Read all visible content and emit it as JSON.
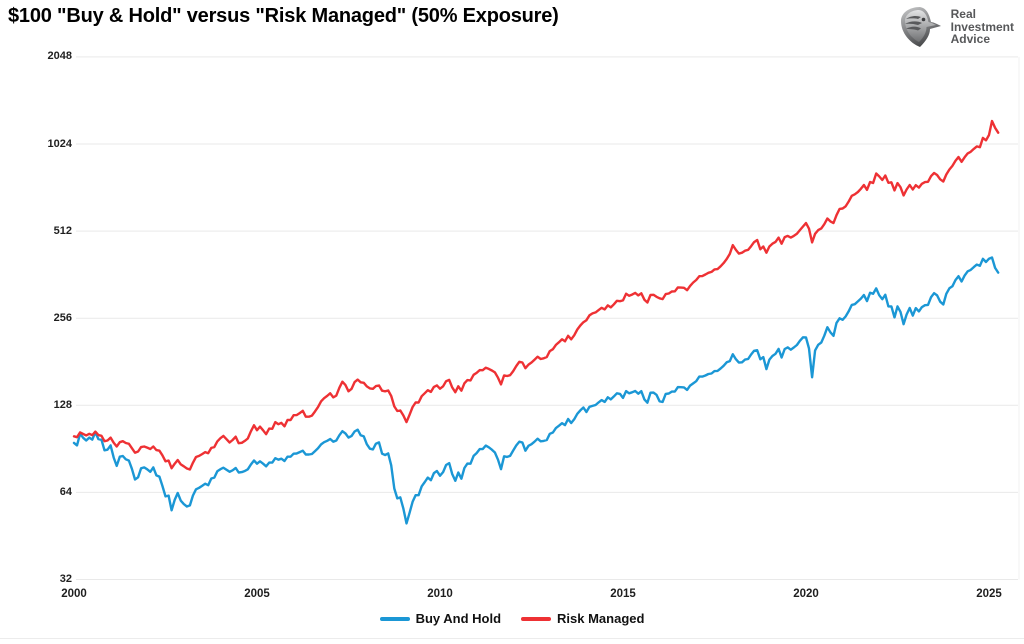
{
  "title": "$100 \"Buy & Hold\" versus \"Risk Managed\" (50% Exposure)",
  "logo": {
    "line1": "Real",
    "line2": "Investment",
    "line3": "Advice"
  },
  "colors": {
    "buy_and_hold": "#1b97d5",
    "risk_managed": "#ee3134",
    "grid": "#e9e9e9",
    "tick_text": "#1f1f1f",
    "title_text": "#000000",
    "logo_text": "#57585a"
  },
  "chart_data": {
    "type": "line",
    "title": "$100 \"Buy & Hold\" versus \"Risk Managed\" (50% Exposure)",
    "xlabel": "",
    "ylabel": "",
    "y_scale": "log2",
    "ylim": [
      32,
      2048
    ],
    "y_ticks": [
      2048,
      1024,
      512,
      256,
      128,
      64,
      32
    ],
    "x_ticks": [
      2000,
      2005,
      2010,
      2015,
      2020,
      2025
    ],
    "x_start_year": 2000,
    "x_step_months": 1,
    "grid": "horizontal-only",
    "legend_position": "bottom-center",
    "series": [
      {
        "name": "Buy And Hold",
        "color": "#1b97d5",
        "values": [
          94.9,
          93.0,
          102.0,
          98.8,
          96.7,
          99.0,
          97.4,
          103.3,
          97.8,
          97.3,
          89.5,
          89.9,
          93.0,
          84.4,
          79.0,
          85.0,
          85.5,
          83.3,
          82.4,
          77.2,
          70.9,
          72.2,
          77.5,
          78.1,
          76.9,
          75.4,
          78.1,
          73.3,
          72.6,
          67.4,
          62.0,
          62.4,
          55.5,
          60.3,
          63.7,
          59.9,
          58.3,
          57.2,
          57.7,
          62.4,
          65.6,
          66.4,
          67.4,
          68.6,
          67.8,
          71.5,
          72.0,
          75.7,
          77.0,
          77.9,
          76.7,
          75.4,
          76.3,
          77.7,
          75.0,
          75.2,
          75.9,
          76.9,
          79.9,
          82.5,
          80.4,
          82.0,
          80.4,
          78.8,
          81.1,
          81.1,
          84.0,
          83.0,
          83.7,
          82.2,
          85.0,
          85.0,
          87.1,
          87.2,
          88.2,
          89.2,
          86.5,
          86.5,
          86.9,
          88.8,
          90.9,
          93.8,
          95.4,
          96.5,
          97.9,
          95.8,
          96.7,
          100.9,
          104.2,
          102.3,
          99.0,
          100.3,
          103.9,
          105.4,
          100.8,
          99.9,
          93.9,
          90.6,
          90.1,
          94.3,
          95.3,
          87.1,
          86.2,
          87.3,
          79.4,
          66.0,
          61.0,
          61.5,
          56.2,
          50.0,
          54.3,
          59.4,
          62.6,
          62.6,
          67.2,
          69.5,
          72.0,
          70.5,
          74.6,
          75.9,
          73.1,
          75.2,
          79.6,
          80.8,
          74.1,
          70.2,
          75.0,
          71.4,
          77.7,
          80.5,
          80.4,
          85.6,
          87.5,
          90.3,
          90.3,
          92.9,
          91.6,
          89.9,
          87.9,
          83.0,
          77.0,
          85.3,
          84.9,
          85.6,
          89.3,
          93.0,
          95.8,
          95.2,
          89.2,
          92.7,
          93.9,
          95.8,
          98.1,
          96.1,
          96.4,
          97.1,
          102.0,
          103.1,
          106.8,
          108.8,
          111.0,
          109.3,
          114.8,
          111.2,
          114.5,
          119.6,
          122.9,
          125.8,
          121.4,
          126.5,
          127.4,
          128.3,
          131.0,
          133.4,
          131.5,
          136.4,
          134.2,
          137.4,
          140.8,
          140.2,
          135.8,
          143.3,
          140.8,
          142.0,
          143.4,
          140.4,
          143.2,
          134.2,
          130.7,
          141.5,
          141.6,
          139.1,
          132.1,
          131.5,
          140.2,
          140.6,
          142.8,
          142.9,
          148.0,
          147.8,
          147.6,
          144.7,
          149.7,
          152.4,
          155.1,
          160.9,
          160.9,
          162.3,
          164.2,
          164.9,
          168.1,
          168.3,
          171.5,
          175.3,
          180.3,
          182.0,
          192.2,
          184.8,
          179.8,
          180.3,
          184.1,
          185.0,
          191.7,
          197.5,
          198.4,
          184.6,
          187.9,
          170.7,
          184.1,
          189.5,
          192.9,
          200.5,
          187.3,
          200.3,
          202.9,
          199.2,
          202.7,
          206.8,
          213.8,
          219.9,
          219.6,
          201.1,
          160.0,
          198.2,
          207.2,
          211.0,
          222.7,
          238.3,
          228.9,
          222.6,
          246.6,
          255.7,
          252.8,
          259.4,
          270.5,
          284.6,
          286.2,
          292.6,
          299.2,
          307.9,
          293.3,
          313.5,
          310.9,
          324.4,
          307.4,
          297.8,
          308.4,
          281.3,
          281.3,
          257.7,
          281.1,
          269.2,
          244.1,
          263.6,
          277.7,
          261.4,
          277.5,
          270.3,
          279.7,
          283.8,
          284.5,
          302.9,
          312.4,
          306.9,
          291.9,
          285.5,
          310.9,
          324.7,
          330.0,
          346.9,
          357.7,
          342.8,
          359.3,
          371.7,
          375.9,
          384.5,
          392.2,
          388.4,
          410.6,
          400.4,
          411.2,
          415.0,
          382.0,
          368.0
        ]
      },
      {
        "name": "Risk Managed",
        "color": "#ee3134",
        "values": [
          100.0,
          99.3,
          103.2,
          101.9,
          100.7,
          102.0,
          101.0,
          103.8,
          101.0,
          100.4,
          96.2,
          96.7,
          99.0,
          95.0,
          92.2,
          95.4,
          96.2,
          94.8,
          94.2,
          91.0,
          87.8,
          88.6,
          91.8,
          92.2,
          91.4,
          90.4,
          92.2,
          89.6,
          89.2,
          86.0,
          82.0,
          82.4,
          77.6,
          80.4,
          82.8,
          80.0,
          78.8,
          77.4,
          76.8,
          81.0,
          84.8,
          85.6,
          86.8,
          88.2,
          87.4,
          91.2,
          91.8,
          96.0,
          98.5,
          100.3,
          97.7,
          95.2,
          97.1,
          99.7,
          94.7,
          95.0,
          96.4,
          98.3,
          104.1,
          109.2,
          105.0,
          108.0,
          104.9,
          101.7,
          106.3,
          106.2,
          112.0,
          110.1,
          111.3,
          108.3,
          113.9,
          113.9,
          118.3,
          118.4,
          120.3,
          122.5,
          116.9,
          116.9,
          117.9,
          121.7,
          126.2,
          132.1,
          135.4,
          137.9,
          140.8,
          136.3,
          138.3,
          147.3,
          154.5,
          150.3,
          143.1,
          146.0,
          153.9,
          157.1,
          153.7,
          153.1,
          148.8,
          146.4,
          146.0,
          149.1,
          149.8,
          143.8,
          143.1,
          144.0,
          137.9,
          126.9,
          122.3,
          122.8,
          118.0,
          112.0,
          118.6,
          126.3,
          130.9,
          130.9,
          137.6,
          140.9,
          144.4,
          142.4,
          148.2,
          150.0,
          146.1,
          148.9,
          155.0,
          156.7,
          147.6,
          142.1,
          148.9,
          143.8,
          152.5,
          156.4,
          156.1,
          163.2,
          165.7,
          169.4,
          169.3,
          172.7,
          171.0,
          168.9,
          166.3,
          159.5,
          151.2,
          162.4,
          161.6,
          162.6,
          168.0,
          175.0,
          181.0,
          180.0,
          172.0,
          177.0,
          180.0,
          184.0,
          188.5,
          185.0,
          186.0,
          188.0,
          197.0,
          200.0,
          207.0,
          211.5,
          216.5,
          213.0,
          222.5,
          216.5,
          223.5,
          234.0,
          241.5,
          248.0,
          252.0,
          262.0,
          266.0,
          268.0,
          273.0,
          278.0,
          274.5,
          283.5,
          279.0,
          286.0,
          294.0,
          293.0,
          295.0,
          311.0,
          306.0,
          309.0,
          313.0,
          307.0,
          312.0,
          296.5,
          290.0,
          308.0,
          308.5,
          303.5,
          300.0,
          298.0,
          310.0,
          311.5,
          316.5,
          317.0,
          327.0,
          326.5,
          326.0,
          320.0,
          331.0,
          340.0,
          347.0,
          357.5,
          358.0,
          362.5,
          367.5,
          370.0,
          377.5,
          378.5,
          387.0,
          397.0,
          410.0,
          427.0,
          458.0,
          441.0,
          428.0,
          431.0,
          438.0,
          441.0,
          454.0,
          469.0,
          477.0,
          443.0,
          453.0,
          431.0,
          453.0,
          463.0,
          470.0,
          486.0,
          463.0,
          488.0,
          493.0,
          486.0,
          493.0,
          501.0,
          516.0,
          531.0,
          546.0,
          522.0,
          468.0,
          501.0,
          516.0,
          523.0,
          541.0,
          566.0,
          553.0,
          546.0,
          581.0,
          611.0,
          613.0,
          623.0,
          648.0,
          678.0,
          686.0,
          699.0,
          717.0,
          739.0,
          711.0,
          757.0,
          751.0,
          810.0,
          791.0,
          769.0,
          797.0,
          752.0,
          755.0,
          708.0,
          750.0,
          726.0,
          680.0,
          713.0,
          739.0,
          713.0,
          738.0,
          724.0,
          746.0,
          756.0,
          758.0,
          793.0,
          813.0,
          800.0,
          773.0,
          760.0,
          803.0,
          836.0,
          860.0,
          896.0,
          923.0,
          889.0,
          921.0,
          950.0,
          962.0,
          985.0,
          1005.0,
          998.0,
          1075.0,
          1055.0,
          1100.0,
          1230.0,
          1165.0,
          1120.0
        ]
      }
    ]
  }
}
